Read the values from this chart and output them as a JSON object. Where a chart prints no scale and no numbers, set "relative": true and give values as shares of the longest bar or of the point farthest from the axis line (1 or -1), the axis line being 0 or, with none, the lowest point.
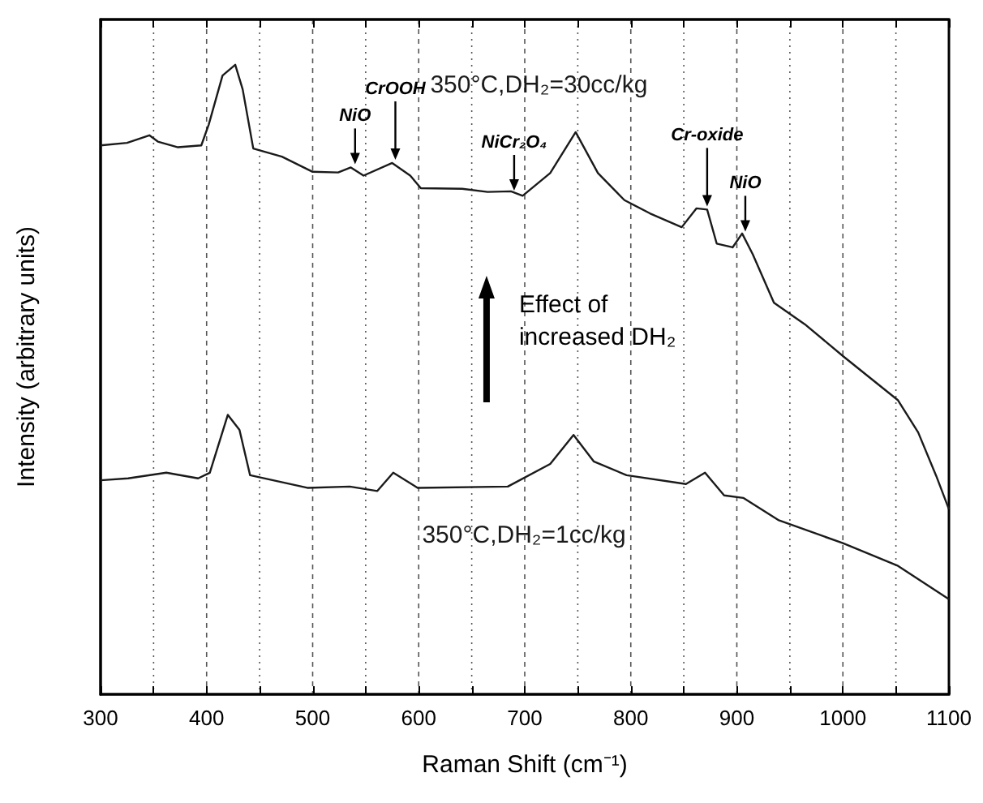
{
  "chart_data": {
    "type": "line",
    "relative": true,
    "xlabel": "Raman Shift (cm⁻¹)",
    "ylabel": "Intensity (arbitrary units)",
    "x": [
      300,
      325,
      346,
      354,
      373,
      395,
      402,
      415,
      427,
      434,
      444,
      471,
      500,
      524,
      536,
      548,
      575,
      592,
      602,
      641,
      665,
      687,
      698,
      724,
      748,
      769,
      794,
      818,
      848,
      862,
      872,
      881,
      896,
      905,
      915,
      935,
      964,
      1001,
      1052,
      1071,
      1088,
      1100
    ],
    "series": [
      {
        "name": "350°C,DH₂=30cc/kg",
        "color": "#1a1a1a",
        "values": [
          0.872,
          0.876,
          0.888,
          0.878,
          0.869,
          0.872,
          0.905,
          0.983,
          1.0,
          0.961,
          0.867,
          0.854,
          0.83,
          0.829,
          0.837,
          0.824,
          0.844,
          0.824,
          0.804,
          0.803,
          0.798,
          0.799,
          0.792,
          0.828,
          0.893,
          0.828,
          0.785,
          0.764,
          0.742,
          0.772,
          0.77,
          0.716,
          0.71,
          0.732,
          0.699,
          0.622,
          0.588,
          0.536,
          0.467,
          0.416,
          0.347,
          0.294
        ]
      },
      {
        "name": "350°C,DH₂=1cc/kg",
        "color": "#1a1a1a",
        "x": [
          300,
          326,
          362,
          392,
          403,
          420,
          431,
          441,
          495,
          535,
          561,
          576,
          599,
          684,
          724,
          746,
          765,
          796,
          852,
          870,
          888,
          906,
          939,
          1000,
          1052,
          1100
        ],
        "values": [
          0.34,
          0.343,
          0.352,
          0.343,
          0.352,
          0.444,
          0.42,
          0.348,
          0.328,
          0.33,
          0.323,
          0.352,
          0.328,
          0.33,
          0.366,
          0.412,
          0.37,
          0.348,
          0.334,
          0.352,
          0.316,
          0.312,
          0.277,
          0.24,
          0.204,
          0.151
        ]
      }
    ],
    "xlim": [
      300,
      1100
    ],
    "xticks": [
      300,
      {
        "value": 350,
        "label": null
      },
      400,
      {
        "value": 450,
        "label": null
      },
      500,
      {
        "value": 550,
        "label": null
      },
      600,
      {
        "value": 650,
        "label": null
      },
      700,
      {
        "value": 750,
        "label": null
      },
      800,
      {
        "value": 850,
        "label": null
      },
      900,
      {
        "value": 950,
        "label": null
      },
      1000,
      {
        "value": 1050,
        "label": null
      },
      1100
    ],
    "grid": "x",
    "marker": "none",
    "line_style": "solid",
    "annotations": [
      {
        "text": "NiO",
        "x": 540,
        "y": 0.837
      },
      {
        "text": "CrOOH",
        "x": 578,
        "y": 0.844
      },
      {
        "text": "NiCr₂O₄",
        "x": 690,
        "y": 0.795
      },
      {
        "text": "Cr-oxide",
        "x": 872,
        "y": 0.77
      },
      {
        "text": "NiO",
        "x": 908,
        "y": 0.73
      },
      "Effect of\nincreased DH₂"
    ]
  }
}
